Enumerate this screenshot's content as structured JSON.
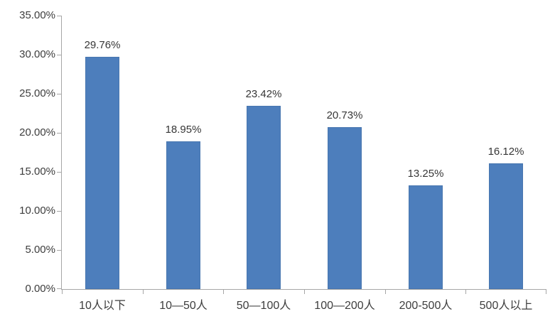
{
  "chart_data": {
    "type": "bar",
    "title": "",
    "xlabel": "",
    "ylabel": "",
    "categories": [
      "10人以下",
      "10—50人",
      "50—100人",
      "100—200人",
      "200-500人",
      "500人以上"
    ],
    "values": [
      29.76,
      18.95,
      23.42,
      20.73,
      13.25,
      16.12
    ],
    "data_labels": [
      "29.76%",
      "18.95%",
      "23.42%",
      "20.73%",
      "13.25%",
      "16.12%"
    ],
    "ylim": [
      0,
      35
    ],
    "y_tick_step": 5,
    "y_tick_labels": [
      "0.00%",
      "5.00%",
      "10.00%",
      "15.00%",
      "20.00%",
      "25.00%",
      "30.00%",
      "35.00%"
    ],
    "grid": false,
    "legend": false,
    "bar_color": "#4d7ebc",
    "axis_color": "#a6a6a6",
    "text_color": "#3d3d3d",
    "background_color": "#ffffff"
  }
}
